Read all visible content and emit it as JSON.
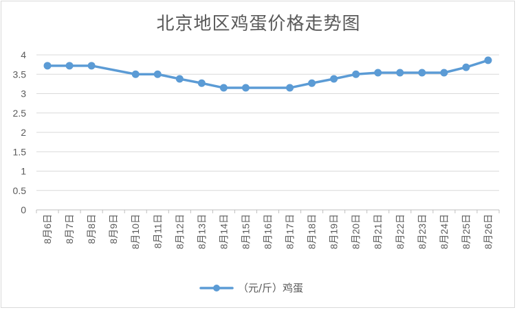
{
  "chart_data": {
    "type": "line",
    "title": "北京地区鸡蛋价格走势图",
    "xlabel": "",
    "ylabel": "",
    "ylim": [
      0,
      4
    ],
    "yticks": [
      "0",
      "0.5",
      "1",
      "1.5",
      "2",
      "2.5",
      "3",
      "3.5",
      "4"
    ],
    "grid": true,
    "legend_position": "bottom",
    "categories": [
      "8月6日",
      "8月7日",
      "8月8日",
      "8月9日",
      "8月10日",
      "8月11日",
      "8月12日",
      "8月13日",
      "8月14日",
      "8月15日",
      "8月16日",
      "8月17日",
      "8月18日",
      "8月19日",
      "8月20日",
      "8月21日",
      "8月22日",
      "8月23日",
      "8月24日",
      "8月25日",
      "8月26日"
    ],
    "series": [
      {
        "name": "（元/斤）鸡蛋",
        "color": "#5b9bd5",
        "points": [
          {
            "x": "8月6日",
            "y": 3.72
          },
          {
            "x": "8月7日",
            "y": 3.72
          },
          {
            "x": "8月8日",
            "y": 3.72
          },
          {
            "x": "8月10日",
            "y": 3.5
          },
          {
            "x": "8月11日",
            "y": 3.5
          },
          {
            "x": "8月12日",
            "y": 3.38
          },
          {
            "x": "8月13日",
            "y": 3.27
          },
          {
            "x": "8月14日",
            "y": 3.15
          },
          {
            "x": "8月15日",
            "y": 3.15
          },
          {
            "x": "8月17日",
            "y": 3.15
          },
          {
            "x": "8月18日",
            "y": 3.27
          },
          {
            "x": "8月19日",
            "y": 3.38
          },
          {
            "x": "8月20日",
            "y": 3.5
          },
          {
            "x": "8月21日",
            "y": 3.54
          },
          {
            "x": "8月22日",
            "y": 3.54
          },
          {
            "x": "8月23日",
            "y": 3.54
          },
          {
            "x": "8月24日",
            "y": 3.54
          },
          {
            "x": "8月25日",
            "y": 3.68
          },
          {
            "x": "8月26日",
            "y": 3.86
          }
        ]
      }
    ]
  }
}
